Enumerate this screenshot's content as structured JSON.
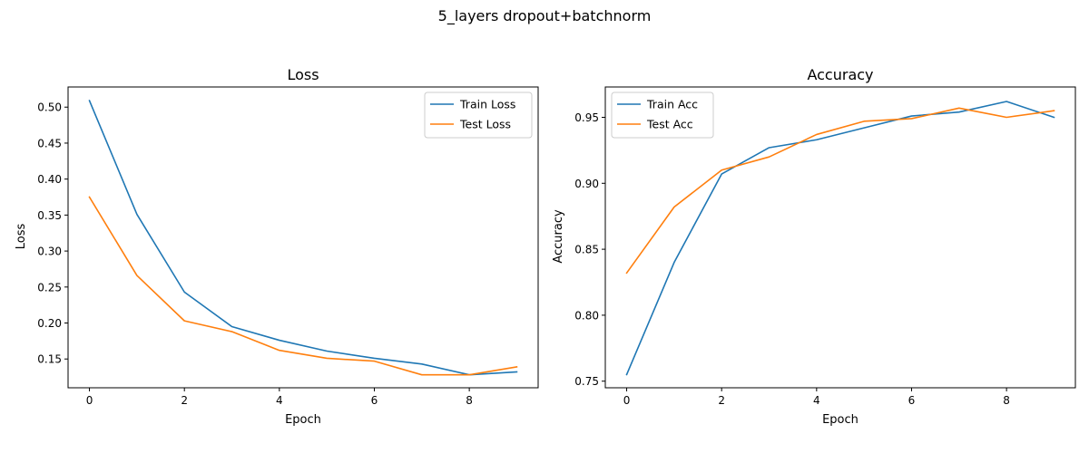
{
  "figure_title": "5_layers dropout+batchnorm",
  "colors": {
    "train": "#1f77b4",
    "test": "#ff7f0e"
  },
  "chart_data": [
    {
      "type": "line",
      "title": "Loss",
      "xlabel": "Epoch",
      "ylabel": "Loss",
      "x": [
        0,
        1,
        2,
        3,
        4,
        5,
        6,
        7,
        8,
        9
      ],
      "xlim": [
        -0.45,
        9.45
      ],
      "ylim": [
        0.11,
        0.528
      ],
      "xticks": [
        0,
        2,
        4,
        6,
        8
      ],
      "xtick_labels": [
        "0",
        "2",
        "4",
        "6",
        "8"
      ],
      "yticks": [
        0.15,
        0.2,
        0.25,
        0.3,
        0.35,
        0.4,
        0.45,
        0.5
      ],
      "ytick_labels": [
        "0.15",
        "0.20",
        "0.25",
        "0.30",
        "0.35",
        "0.40",
        "0.45",
        "0.50"
      ],
      "grid": false,
      "legend_position": "upper right",
      "series": [
        {
          "name": "Train Loss",
          "color": "#1f77b4",
          "values": [
            0.509,
            0.351,
            0.243,
            0.195,
            0.176,
            0.161,
            0.151,
            0.143,
            0.128,
            0.132
          ]
        },
        {
          "name": "Test Loss",
          "color": "#ff7f0e",
          "values": [
            0.375,
            0.266,
            0.203,
            0.188,
            0.162,
            0.151,
            0.147,
            0.128,
            0.128,
            0.139
          ]
        }
      ]
    },
    {
      "type": "line",
      "title": "Accuracy",
      "xlabel": "Epoch",
      "ylabel": "Accuracy",
      "x": [
        0,
        1,
        2,
        3,
        4,
        5,
        6,
        7,
        8,
        9
      ],
      "xlim": [
        -0.45,
        9.45
      ],
      "ylim": [
        0.745,
        0.973
      ],
      "xticks": [
        0,
        2,
        4,
        6,
        8
      ],
      "xtick_labels": [
        "0",
        "2",
        "4",
        "6",
        "8"
      ],
      "yticks": [
        0.75,
        0.8,
        0.85,
        0.9,
        0.95
      ],
      "ytick_labels": [
        "0.75",
        "0.80",
        "0.85",
        "0.90",
        "0.95"
      ],
      "grid": false,
      "legend_position": "upper left",
      "series": [
        {
          "name": "Train Acc",
          "color": "#1f77b4",
          "values": [
            0.755,
            0.84,
            0.907,
            0.927,
            0.933,
            0.942,
            0.951,
            0.954,
            0.962,
            0.95
          ]
        },
        {
          "name": "Test Acc",
          "color": "#ff7f0e",
          "values": [
            0.832,
            0.882,
            0.91,
            0.92,
            0.937,
            0.947,
            0.949,
            0.957,
            0.95,
            0.955
          ]
        }
      ]
    }
  ]
}
